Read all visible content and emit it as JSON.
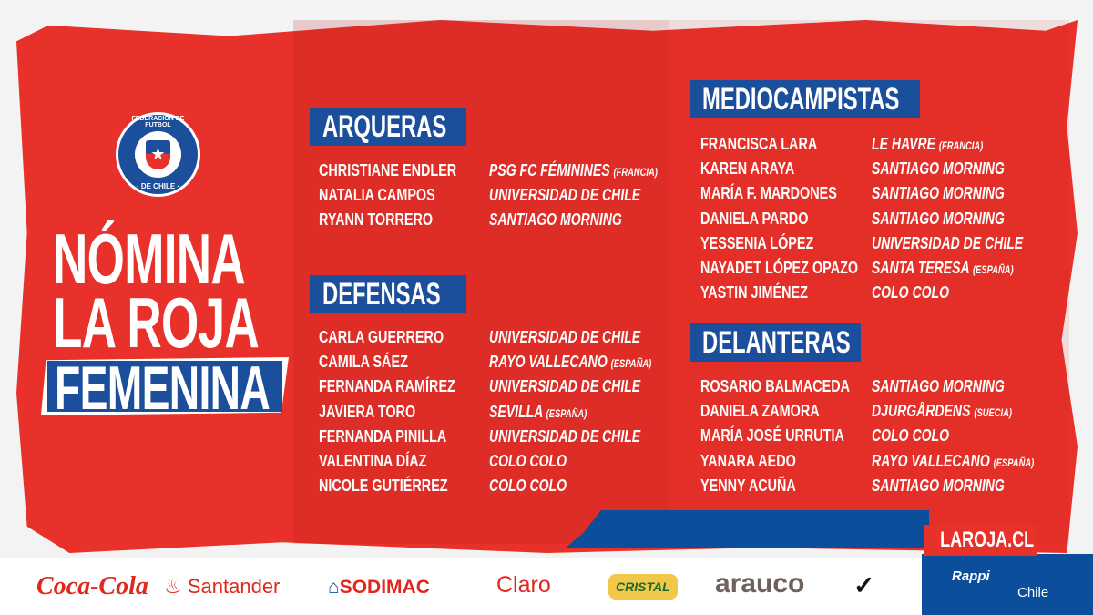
{
  "crest": {
    "top": "FEDERACION DE FUTBOL",
    "bottom": "· DE CHILE ·"
  },
  "title": {
    "line1": "NÓMINA",
    "line2": "LA ROJA",
    "line3": "FEMENINA"
  },
  "sections": [
    {
      "title": "ARQUERAS",
      "players": [
        {
          "name": "CHRISTIANE ENDLER",
          "club": "PSG FC FÉMININES",
          "country": "(FRANCIA)"
        },
        {
          "name": "NATALIA CAMPOS",
          "club": "UNIVERSIDAD DE CHILE",
          "country": ""
        },
        {
          "name": "RYANN TORRERO",
          "club": "SANTIAGO MORNING",
          "country": ""
        }
      ]
    },
    {
      "title": "DEFENSAS",
      "players": [
        {
          "name": "CARLA GUERRERO",
          "club": "UNIVERSIDAD DE CHILE",
          "country": ""
        },
        {
          "name": "CAMILA SÁEZ",
          "club": "RAYO VALLECANO",
          "country": "(ESPAÑA)"
        },
        {
          "name": "FERNANDA RAMÍREZ",
          "club": "UNIVERSIDAD DE CHILE",
          "country": ""
        },
        {
          "name": "JAVIERA TORO",
          "club": "SEVILLA",
          "country": "(ESPAÑA)"
        },
        {
          "name": "FERNANDA PINILLA",
          "club": "UNIVERSIDAD DE CHILE",
          "country": ""
        },
        {
          "name": "VALENTINA DÍAZ",
          "club": "COLO COLO",
          "country": ""
        },
        {
          "name": "NICOLE GUTIÉRREZ",
          "club": "COLO COLO",
          "country": ""
        }
      ]
    },
    {
      "title": "MEDIOCAMPISTAS",
      "players": [
        {
          "name": "FRANCISCA LARA",
          "club": "LE HAVRE",
          "country": "(FRANCIA)"
        },
        {
          "name": "KAREN ARAYA",
          "club": "SANTIAGO MORNING",
          "country": ""
        },
        {
          "name": "MARÍA F. MARDONES",
          "club": "SANTIAGO MORNING",
          "country": ""
        },
        {
          "name": "DANIELA PARDO",
          "club": "SANTIAGO MORNING",
          "country": ""
        },
        {
          "name": "YESSENIA LÓPEZ",
          "club": "UNIVERSIDAD DE CHILE",
          "country": ""
        },
        {
          "name": "NAYADET LÓPEZ OPAZO",
          "club": "SANTA TERESA",
          "country": "(ESPAÑA)"
        },
        {
          "name": "YASTIN JIMÉNEZ",
          "club": "COLO COLO",
          "country": ""
        }
      ]
    },
    {
      "title": "DELANTERAS",
      "players": [
        {
          "name": "ROSARIO BALMACEDA",
          "club": "SANTIAGO MORNING",
          "country": ""
        },
        {
          "name": "DANIELA ZAMORA",
          "club": "DJURGÅRDENS",
          "country": "(SUECIA)"
        },
        {
          "name": "MARÍA JOSÉ URRUTIA",
          "club": "COLO COLO",
          "country": ""
        },
        {
          "name": "YANARA AEDO",
          "club": "RAYO VALLECANO",
          "country": "(ESPAÑA)"
        },
        {
          "name": "YENNY ACUÑA",
          "club": "SANTIAGO MORNING",
          "country": ""
        }
      ]
    }
  ],
  "website": "LAROJA.CL",
  "sponsors": [
    "Coca-Cola",
    "Santander",
    "SODIMAC",
    "Claro",
    "CRISTAL",
    "arauco",
    "Nike",
    "Rappi",
    "Chile"
  ],
  "colors": {
    "red": "#e8312a",
    "blue": "#1b4f9c"
  }
}
